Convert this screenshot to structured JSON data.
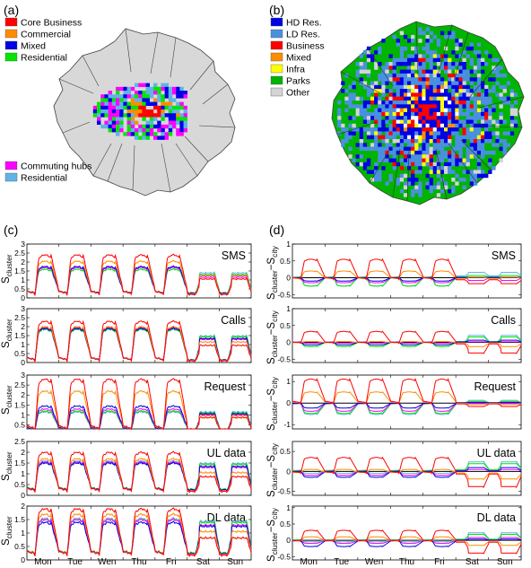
{
  "panels": {
    "a": {
      "label": "(a)",
      "legend_top": [
        {
          "label": "Core Business",
          "color": "#ff0000"
        },
        {
          "label": "Commercial",
          "color": "#ff8c00"
        },
        {
          "label": "Mixed",
          "color": "#0000e6"
        },
        {
          "label": "Residential",
          "color": "#00e600"
        }
      ],
      "legend_bottom": [
        {
          "label": "Commuting hubs",
          "color": "#ff00ff"
        },
        {
          "label": "Residential",
          "color": "#5fb4e6"
        }
      ]
    },
    "b": {
      "label": "(b)",
      "legend": [
        {
          "label": "HD Res.",
          "color": "#0000e6"
        },
        {
          "label": "LD Res.",
          "color": "#4a90e0"
        },
        {
          "label": "Business",
          "color": "#ff0000"
        },
        {
          "label": "Mixed",
          "color": "#ff8c00"
        },
        {
          "label": "Infra",
          "color": "#ffff00"
        },
        {
          "label": "Parks",
          "color": "#00b400"
        },
        {
          "label": "Other",
          "color": "#d4d4d4"
        }
      ]
    },
    "c": {
      "label": "(c)",
      "ylabel_main": "S",
      "ylabel_sub": "cluster",
      "subplots": [
        {
          "title": "SMS",
          "yticks": [
            "0",
            "0.5",
            "1",
            "1.5",
            "2",
            "2.5",
            "3"
          ]
        },
        {
          "title": "Calls",
          "yticks": [
            "0",
            "0.5",
            "1",
            "1.5",
            "2",
            "2.5",
            "3"
          ]
        },
        {
          "title": "Request",
          "yticks": [
            "0.5",
            "1",
            "1.5",
            "2",
            "2.5",
            "3"
          ]
        },
        {
          "title": "UL data",
          "yticks": [
            "0",
            "0.5",
            "1",
            "1.5",
            "2",
            "2.5"
          ]
        },
        {
          "title": "DL data",
          "yticks": [
            "0",
            "0.5",
            "1",
            "1.5",
            "2"
          ]
        }
      ]
    },
    "d": {
      "label": "(d)",
      "ylabel_main1": "S",
      "ylabel_sub1": "cluster",
      "ylabel_main2": "−S",
      "ylabel_sub2": "city",
      "subplots": [
        {
          "title": "SMS",
          "yticks": [
            "-0.5",
            "0",
            "0.5",
            "1"
          ]
        },
        {
          "title": "Calls",
          "yticks": [
            "-0.5",
            "0",
            "0.5",
            "1"
          ]
        },
        {
          "title": "Request",
          "yticks": [
            "-1",
            "0",
            "1"
          ]
        },
        {
          "title": "UL data",
          "yticks": [
            "-0.5",
            "0",
            "0.5"
          ]
        },
        {
          "title": "DL data",
          "yticks": [
            "-0.5",
            "0",
            "0.5",
            "1"
          ]
        }
      ]
    }
  },
  "days": [
    "Mon",
    "Tue",
    "Wen",
    "Thu",
    "Fri",
    "Sat",
    "Sun"
  ],
  "series_colors": {
    "core_business": "#ff0000",
    "commercial": "#ff8c00",
    "mixed": "#0000e6",
    "residential": "#00e600",
    "commuting_hubs": "#ff00ff",
    "residential_outer": "#5fb4e6"
  }
}
